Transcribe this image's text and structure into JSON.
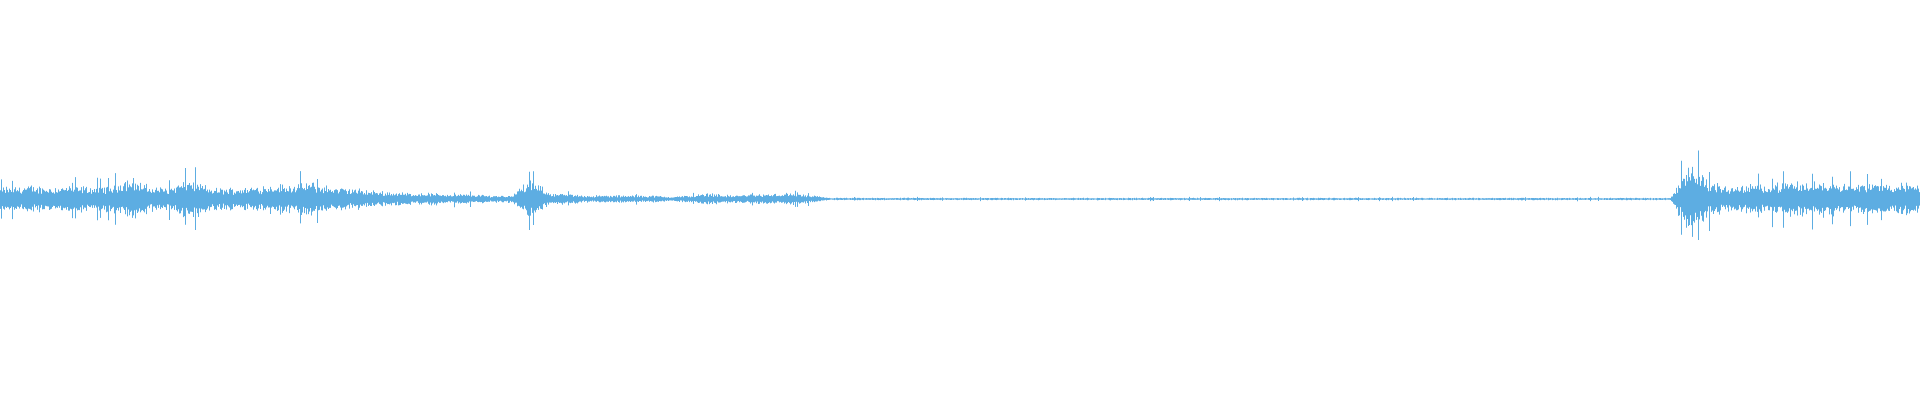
{
  "chart_data": {
    "type": "area",
    "title": "",
    "xlabel": "",
    "ylabel": "",
    "ylim": [
      -1,
      1
    ],
    "grid": false,
    "color": "#5dade2",
    "background": "#ffffff",
    "envelope_amplitude": [
      0.05,
      0.055,
      0.05,
      0.055,
      0.05,
      0.055,
      0.09,
      0.05,
      0.05,
      0.085,
      0.045,
      0.045,
      0.05,
      0.06,
      0.06,
      0.07,
      0.05,
      0.045,
      0.035,
      0.03,
      0.025,
      0.025,
      0.02,
      0.02,
      0.015,
      0.015,
      0.08,
      0.025,
      0.02,
      0.015,
      0.015,
      0.015,
      0.015,
      0.01,
      0.015,
      0.025,
      0.015,
      0.02,
      0.02,
      0.025,
      0.015,
      0.005,
      0.005,
      0.005,
      0.005,
      0.005,
      0.005,
      0.005,
      0.005,
      0.005,
      0.005,
      0.005,
      0.005,
      0.005,
      0.005,
      0.005,
      0.005,
      0.005,
      0.005,
      0.005,
      0.005,
      0.005,
      0.005,
      0.005,
      0.005,
      0.005,
      0.005,
      0.005,
      0.005,
      0.005,
      0.005,
      0.005,
      0.005,
      0.005,
      0.005,
      0.005,
      0.005,
      0.005,
      0.005,
      0.005,
      0.005,
      0.005,
      0.005,
      0.005,
      0.16,
      0.07,
      0.05,
      0.06,
      0.065,
      0.07,
      0.07,
      0.075,
      0.07,
      0.065,
      0.065,
      0.065
    ]
  }
}
